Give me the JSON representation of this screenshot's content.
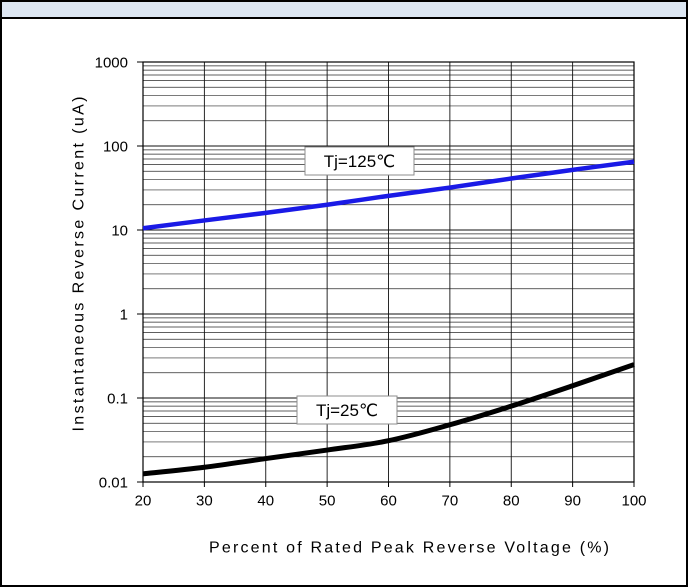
{
  "colors": {
    "header_band": "#dce6f2"
  },
  "chart_data": {
    "type": "line",
    "xlabel": "Percent of Rated Peak Reverse Voltage (%)",
    "ylabel": "Instantaneous Reverse Current (uA)",
    "xlim": [
      20,
      100
    ],
    "ylim": [
      0.01,
      1000
    ],
    "xscale": "linear",
    "yscale": "log",
    "grid": true,
    "legend": "inline",
    "x_ticks": [
      "20",
      "30",
      "40",
      "50",
      "60",
      "70",
      "80",
      "90",
      "100"
    ],
    "y_ticks": [
      "0.01",
      "0.1",
      "1",
      "10",
      "100",
      "1000"
    ],
    "x": [
      20,
      30,
      40,
      50,
      60,
      70,
      80,
      90,
      100
    ],
    "series": [
      {
        "name": "Tj=125℃",
        "color": "#1a1ae6",
        "values": [
          10.5,
          13,
          16,
          20,
          25.5,
          32,
          41,
          52,
          65
        ]
      },
      {
        "name": "Tj=25℃",
        "color": "#000000",
        "values": [
          0.0125,
          0.015,
          0.019,
          0.024,
          0.031,
          0.048,
          0.08,
          0.14,
          0.25
        ]
      }
    ]
  }
}
